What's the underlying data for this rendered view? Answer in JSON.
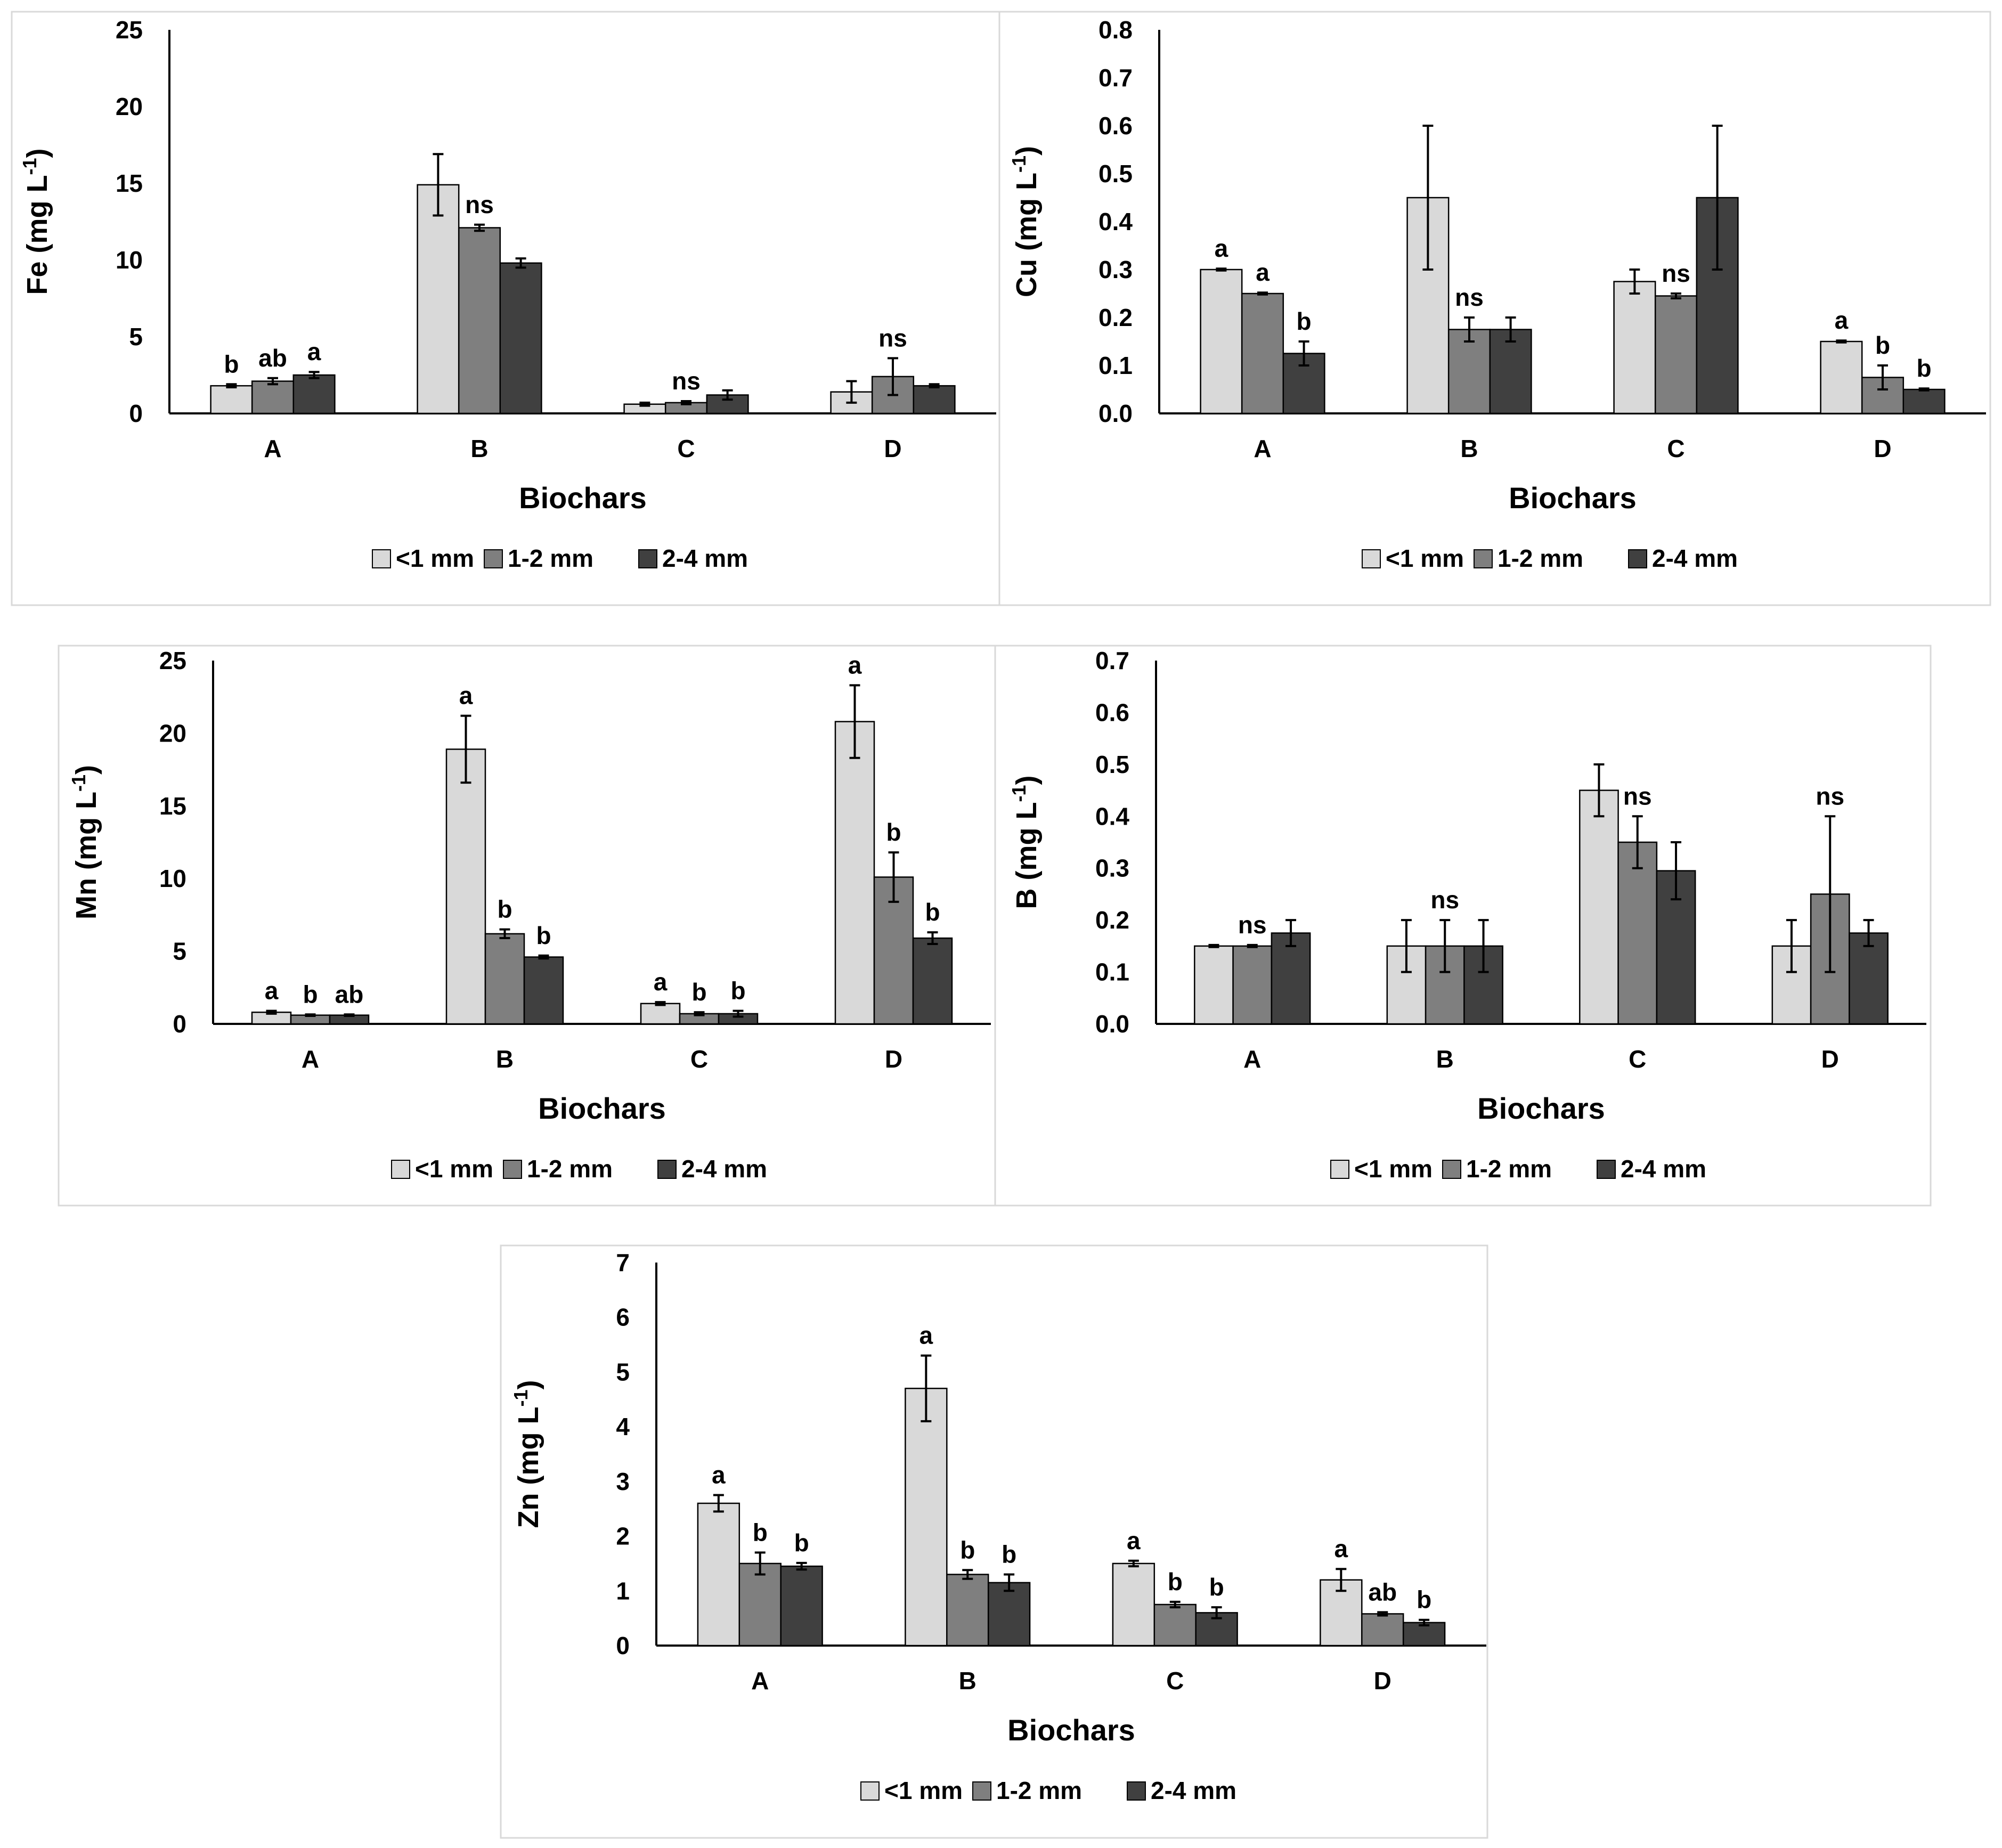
{
  "colors": {
    "lt1mm": "#D9D9D9",
    "mm1_2": "#7F7F7F",
    "mm2_4": "#404040",
    "axis": "#000000",
    "border": "#D9D9D9"
  },
  "chart_data": [
    {
      "type": "bar",
      "id": "fe",
      "ylabel_main": "Fe (mg L",
      "ylabel_sup": "-1",
      "ylabel_close": ")",
      "xlabel": "Biochars",
      "categories": [
        "A",
        "B",
        "C",
        "D"
      ],
      "ylim": [
        0,
        25
      ],
      "yticks": [
        0,
        5,
        10,
        15,
        20,
        25
      ],
      "ytick_labels": [
        "0",
        "5",
        "10",
        "15",
        "20",
        "25"
      ],
      "series": [
        {
          "name": "<1 mm",
          "values": [
            1.8,
            14.9,
            0.6,
            1.4
          ],
          "errors": [
            0.1,
            2.0,
            0.1,
            0.7
          ]
        },
        {
          "name": "1-2 mm",
          "values": [
            2.1,
            12.1,
            0.7,
            2.4
          ],
          "errors": [
            0.2,
            0.2,
            0.1,
            1.2
          ]
        },
        {
          "name": "2-4 mm",
          "values": [
            2.5,
            9.8,
            1.2,
            1.8
          ],
          "errors": [
            0.2,
            0.3,
            0.3,
            0.1
          ]
        }
      ],
      "annotations": [
        {
          "category": 0,
          "series": 0,
          "text": "b"
        },
        {
          "category": 0,
          "series": 1,
          "text": "ab"
        },
        {
          "category": 0,
          "series": 2,
          "text": "a"
        },
        {
          "category": 1,
          "series": 1,
          "text": "ns"
        },
        {
          "category": 2,
          "series": 1,
          "text": "ns"
        },
        {
          "category": 3,
          "series": 1,
          "text": "ns"
        }
      ],
      "legend": [
        "<1 mm",
        "1-2 mm",
        "2-4 mm"
      ]
    },
    {
      "type": "bar",
      "id": "cu",
      "ylabel_main": "Cu (mg L",
      "ylabel_sup": "-1",
      "ylabel_close": ")",
      "xlabel": "Biochars",
      "categories": [
        "A",
        "B",
        "C",
        "D"
      ],
      "ylim": [
        0,
        0.8
      ],
      "yticks": [
        0,
        0.1,
        0.2,
        0.3,
        0.4,
        0.5,
        0.6,
        0.7,
        0.8
      ],
      "ytick_labels": [
        "0.0",
        "0.1",
        "0.2",
        "0.3",
        "0.4",
        "0.5",
        "0.6",
        "0.7",
        "0.8"
      ],
      "series": [
        {
          "name": "<1 mm",
          "values": [
            0.3,
            0.45,
            0.275,
            0.15
          ],
          "errors": [
            0.002,
            0.15,
            0.025,
            0.002
          ]
        },
        {
          "name": "1-2 mm",
          "values": [
            0.25,
            0.175,
            0.245,
            0.075
          ],
          "errors": [
            0.002,
            0.025,
            0.005,
            0.025
          ]
        },
        {
          "name": "2-4 mm",
          "values": [
            0.125,
            0.175,
            0.45,
            0.05
          ],
          "errors": [
            0.025,
            0.025,
            0.15,
            0.002
          ]
        }
      ],
      "annotations": [
        {
          "category": 0,
          "series": 0,
          "text": "a"
        },
        {
          "category": 0,
          "series": 1,
          "text": "a"
        },
        {
          "category": 0,
          "series": 2,
          "text": "b"
        },
        {
          "category": 1,
          "series": 1,
          "text": "ns"
        },
        {
          "category": 2,
          "series": 1,
          "text": "ns"
        },
        {
          "category": 3,
          "series": 0,
          "text": "a"
        },
        {
          "category": 3,
          "series": 1,
          "text": "b"
        },
        {
          "category": 3,
          "series": 2,
          "text": "b"
        }
      ],
      "legend": [
        "<1 mm",
        "1-2 mm",
        "2-4 mm"
      ]
    },
    {
      "type": "bar",
      "id": "mn",
      "ylabel_main": "Mn (mg L",
      "ylabel_sup": "-1",
      "ylabel_close": ")",
      "xlabel": "Biochars",
      "categories": [
        "A",
        "B",
        "C",
        "D"
      ],
      "ylim": [
        0,
        25
      ],
      "yticks": [
        0,
        5,
        10,
        15,
        20,
        25
      ],
      "ytick_labels": [
        "0",
        "5",
        "10",
        "15",
        "20",
        "25"
      ],
      "series": [
        {
          "name": "<1 mm",
          "values": [
            0.8,
            18.9,
            1.4,
            20.8
          ],
          "errors": [
            0.1,
            2.3,
            0.1,
            2.5
          ]
        },
        {
          "name": "1-2 mm",
          "values": [
            0.6,
            6.2,
            0.7,
            10.1
          ],
          "errors": [
            0.05,
            0.3,
            0.1,
            1.7
          ]
        },
        {
          "name": "2-4 mm",
          "values": [
            0.6,
            4.6,
            0.7,
            5.9
          ],
          "errors": [
            0.05,
            0.1,
            0.2,
            0.4
          ]
        }
      ],
      "annotations": [
        {
          "category": 0,
          "series": 0,
          "text": "a"
        },
        {
          "category": 0,
          "series": 1,
          "text": "b"
        },
        {
          "category": 0,
          "series": 2,
          "text": "ab"
        },
        {
          "category": 1,
          "series": 0,
          "text": "a"
        },
        {
          "category": 1,
          "series": 1,
          "text": "b"
        },
        {
          "category": 1,
          "series": 2,
          "text": "b"
        },
        {
          "category": 2,
          "series": 0,
          "text": "a"
        },
        {
          "category": 2,
          "series": 1,
          "text": "b"
        },
        {
          "category": 2,
          "series": 2,
          "text": "b"
        },
        {
          "category": 3,
          "series": 0,
          "text": "a"
        },
        {
          "category": 3,
          "series": 1,
          "text": "b"
        },
        {
          "category": 3,
          "series": 2,
          "text": "b"
        }
      ],
      "legend": [
        "<1 mm",
        "1-2 mm",
        "2-4 mm"
      ]
    },
    {
      "type": "bar",
      "id": "b",
      "ylabel_main": "B (mg L",
      "ylabel_sup": "-1",
      "ylabel_close": ")",
      "xlabel": "Biochars",
      "categories": [
        "A",
        "B",
        "C",
        "D"
      ],
      "ylim": [
        0,
        0.7
      ],
      "yticks": [
        0,
        0.1,
        0.2,
        0.3,
        0.4,
        0.5,
        0.6,
        0.7
      ],
      "ytick_labels": [
        "0.0",
        "0.1",
        "0.2",
        "0.3",
        "0.4",
        "0.5",
        "0.6",
        "0.7"
      ],
      "series": [
        {
          "name": "<1 mm",
          "values": [
            0.15,
            0.15,
            0.45,
            0.15
          ],
          "errors": [
            0.002,
            0.05,
            0.05,
            0.05
          ]
        },
        {
          "name": "1-2 mm",
          "values": [
            0.15,
            0.15,
            0.35,
            0.25
          ],
          "errors": [
            0.002,
            0.05,
            0.05,
            0.15
          ]
        },
        {
          "name": "2-4 mm",
          "values": [
            0.175,
            0.15,
            0.295,
            0.175
          ],
          "errors": [
            0.025,
            0.05,
            0.055,
            0.025
          ]
        }
      ],
      "annotations": [
        {
          "category": 0,
          "series": 1,
          "text": "ns"
        },
        {
          "category": 1,
          "series": 1,
          "text": "ns"
        },
        {
          "category": 2,
          "series": 1,
          "text": "ns"
        },
        {
          "category": 3,
          "series": 1,
          "text": "ns"
        }
      ],
      "legend": [
        "<1 mm",
        "1-2 mm",
        "2-4 mm"
      ]
    },
    {
      "type": "bar",
      "id": "zn",
      "ylabel_main": "Zn (mg L",
      "ylabel_sup": "-1",
      "ylabel_close": ")",
      "xlabel": "Biochars",
      "categories": [
        "A",
        "B",
        "C",
        "D"
      ],
      "ylim": [
        0,
        7
      ],
      "yticks": [
        0,
        1,
        2,
        3,
        4,
        5,
        6,
        7
      ],
      "ytick_labels": [
        "0",
        "1",
        "2",
        "3",
        "4",
        "5",
        "6",
        "7"
      ],
      "series": [
        {
          "name": "<1 mm",
          "values": [
            2.6,
            4.7,
            1.5,
            1.2
          ],
          "errors": [
            0.15,
            0.6,
            0.05,
            0.2
          ]
        },
        {
          "name": "1-2 mm",
          "values": [
            1.5,
            1.3,
            0.75,
            0.58
          ],
          "errors": [
            0.2,
            0.08,
            0.05,
            0.03
          ]
        },
        {
          "name": "2-4 mm",
          "values": [
            1.45,
            1.15,
            0.6,
            0.42
          ],
          "errors": [
            0.06,
            0.15,
            0.1,
            0.05
          ]
        }
      ],
      "annotations": [
        {
          "category": 0,
          "series": 0,
          "text": "a"
        },
        {
          "category": 0,
          "series": 1,
          "text": "b"
        },
        {
          "category": 0,
          "series": 2,
          "text": "b"
        },
        {
          "category": 1,
          "series": 0,
          "text": "a"
        },
        {
          "category": 1,
          "series": 1,
          "text": "b"
        },
        {
          "category": 1,
          "series": 2,
          "text": "b"
        },
        {
          "category": 2,
          "series": 0,
          "text": "a"
        },
        {
          "category": 2,
          "series": 1,
          "text": "b"
        },
        {
          "category": 2,
          "series": 2,
          "text": "b"
        },
        {
          "category": 3,
          "series": 0,
          "text": "a"
        },
        {
          "category": 3,
          "series": 1,
          "text": "ab"
        },
        {
          "category": 3,
          "series": 2,
          "text": "b"
        }
      ],
      "legend": [
        "<1 mm",
        "1-2 mm",
        "2-4 mm"
      ]
    }
  ]
}
